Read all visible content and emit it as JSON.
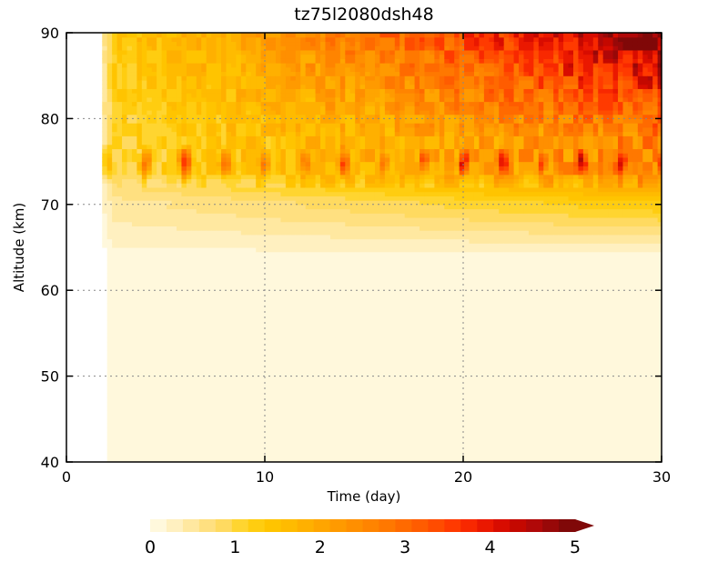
{
  "chart_data": {
    "type": "heatmap",
    "title": "tz75l2080dsh48",
    "xlabel": "Time (day)",
    "ylabel": "Altitude (km)",
    "xlim": [
      0,
      30
    ],
    "ylim": [
      40,
      90
    ],
    "x_ticks": [
      0,
      10,
      20,
      30
    ],
    "y_ticks": [
      40,
      50,
      60,
      70,
      80,
      90
    ],
    "grid": "dotted",
    "data_start_day": 1.8,
    "colorbar": {
      "min": 0,
      "max": 5,
      "extend": "max",
      "tick_values": [
        0,
        1,
        2,
        3,
        4,
        5
      ],
      "tick_labels": [
        "0",
        "1",
        "2",
        "3",
        "4",
        "5"
      ],
      "levels": 26,
      "colors": [
        "#fff8dc",
        "#fff0c0",
        "#ffe8a0",
        "#ffe080",
        "#ffda60",
        "#ffd530",
        "#ffcd10",
        "#ffc400",
        "#ffbb00",
        "#ffb000",
        "#ffa500",
        "#ff9a00",
        "#ff8f00",
        "#ff8400",
        "#ff7800",
        "#ff6a00",
        "#ff5c00",
        "#ff4c00",
        "#ff3a00",
        "#f82800",
        "#ea1800",
        "#d80c00",
        "#c40800",
        "#b00808",
        "#980808",
        "#800808"
      ]
    },
    "pulse_days": [
      2,
      4,
      6,
      8,
      10,
      12,
      14,
      16,
      18,
      20,
      22,
      24,
      26,
      28,
      30
    ],
    "pulse_peaks": [
      2.9,
      2.8,
      3.6,
      2.9,
      3.0,
      2.9,
      3.6,
      3.2,
      3.3,
      4.2,
      4.0,
      3.8,
      4.5,
      4.0,
      3.7
    ],
    "peak_altitude_km": 75
  }
}
